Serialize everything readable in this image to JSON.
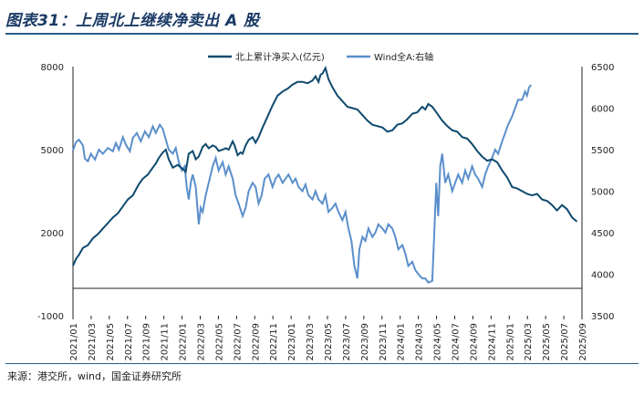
{
  "title": "图表31：上周北上继续净卖出 A 股",
  "source": "来源：港交所，wind，国金证券研究所",
  "chart_data": {
    "type": "line",
    "x_labels": [
      "2021/01",
      "2021/03",
      "2021/05",
      "2021/07",
      "2021/09",
      "2021/11",
      "2022/01",
      "2022/03",
      "2022/05",
      "2022/07",
      "2022/09",
      "2022/11",
      "2023/01",
      "2023/03",
      "2023/05",
      "2023/07",
      "2023/09",
      "2023/11",
      "2024/01",
      "2024/03",
      "2024/05",
      "2024/07",
      "2024/09",
      "2024/11",
      "2025/01",
      "2025/03",
      "2025/05",
      "2025/07",
      "2025/09"
    ],
    "y_left": {
      "min": -1000,
      "max": 8000,
      "ticks": [
        -1000,
        2000,
        5000,
        8000
      ]
    },
    "y_right": {
      "min": 3500,
      "max": 6500,
      "ticks": [
        3500,
        4000,
        4500,
        5000,
        5500,
        6000,
        6500
      ]
    },
    "series": [
      {
        "name": "北上累计净买入(亿元)",
        "axis": "left",
        "color": "#0f4a6e",
        "points": [
          [
            0,
            800
          ],
          [
            0.3,
            1050
          ],
          [
            0.6,
            1200
          ],
          [
            1,
            1450
          ],
          [
            1.5,
            1550
          ],
          [
            2,
            1800
          ],
          [
            2.5,
            1950
          ],
          [
            3,
            2150
          ],
          [
            3.5,
            2350
          ],
          [
            4,
            2550
          ],
          [
            4.5,
            2700
          ],
          [
            5,
            2950
          ],
          [
            5.5,
            3200
          ],
          [
            6,
            3350
          ],
          [
            6.3,
            3550
          ],
          [
            6.6,
            3750
          ],
          [
            7,
            3950
          ],
          [
            7.5,
            4100
          ],
          [
            8,
            4350
          ],
          [
            8.3,
            4500
          ],
          [
            8.6,
            4700
          ],
          [
            9,
            4900
          ],
          [
            9.3,
            5000
          ],
          [
            9.6,
            4650
          ],
          [
            10,
            4350
          ],
          [
            10.5,
            4450
          ],
          [
            11,
            4300
          ],
          [
            11.3,
            4200
          ],
          [
            11.6,
            4850
          ],
          [
            12,
            4950
          ],
          [
            12.3,
            4650
          ],
          [
            12.6,
            4750
          ],
          [
            13,
            5100
          ],
          [
            13.3,
            5200
          ],
          [
            13.6,
            5050
          ],
          [
            14,
            5150
          ],
          [
            14.3,
            5100
          ],
          [
            14.6,
            4950
          ],
          [
            15,
            5000
          ],
          [
            15.3,
            5050
          ],
          [
            15.6,
            5000
          ],
          [
            16,
            5300
          ],
          [
            16.2,
            5150
          ],
          [
            16.5,
            4800
          ],
          [
            16.8,
            4900
          ],
          [
            17,
            4850
          ],
          [
            17.3,
            5150
          ],
          [
            17.6,
            5350
          ],
          [
            18,
            5450
          ],
          [
            18.3,
            5250
          ],
          [
            18.6,
            5450
          ],
          [
            19,
            5800
          ],
          [
            19.5,
            6200
          ],
          [
            20,
            6600
          ],
          [
            20.5,
            6950
          ],
          [
            21,
            7100
          ],
          [
            21.5,
            7200
          ],
          [
            22,
            7350
          ],
          [
            22.5,
            7450
          ],
          [
            23,
            7450
          ],
          [
            23.5,
            7400
          ],
          [
            24,
            7500
          ],
          [
            24.3,
            7650
          ],
          [
            24.6,
            7450
          ],
          [
            24.8,
            7700
          ],
          [
            25,
            7750
          ],
          [
            25.3,
            7950
          ],
          [
            25.6,
            7550
          ],
          [
            26,
            7250
          ],
          [
            26.5,
            6950
          ],
          [
            27,
            6750
          ],
          [
            27.5,
            6550
          ],
          [
            28,
            6500
          ],
          [
            28.5,
            6450
          ],
          [
            29,
            6250
          ],
          [
            29.5,
            6050
          ],
          [
            30,
            5900
          ],
          [
            30.5,
            5850
          ],
          [
            31,
            5800
          ],
          [
            31.5,
            5650
          ],
          [
            32,
            5700
          ],
          [
            32.5,
            5900
          ],
          [
            33,
            5950
          ],
          [
            33.5,
            6100
          ],
          [
            34,
            6300
          ],
          [
            34.5,
            6350
          ],
          [
            35,
            6550
          ],
          [
            35.3,
            6450
          ],
          [
            35.6,
            6650
          ],
          [
            36,
            6550
          ],
          [
            36.5,
            6300
          ],
          [
            37,
            6050
          ],
          [
            37.5,
            5850
          ],
          [
            38,
            5700
          ],
          [
            38.5,
            5650
          ],
          [
            39,
            5450
          ],
          [
            39.5,
            5400
          ],
          [
            40,
            5200
          ],
          [
            40.5,
            4950
          ],
          [
            41,
            4750
          ],
          [
            41.5,
            4600
          ],
          [
            42,
            4650
          ],
          [
            42.5,
            4550
          ],
          [
            43,
            4250
          ],
          [
            43.5,
            4000
          ],
          [
            44,
            3650
          ],
          [
            44.5,
            3600
          ],
          [
            45,
            3500
          ],
          [
            45.5,
            3400
          ],
          [
            46,
            3350
          ],
          [
            46.5,
            3400
          ],
          [
            47,
            3200
          ],
          [
            47.5,
            3150
          ],
          [
            48,
            3000
          ],
          [
            48.5,
            2800
          ],
          [
            49,
            3000
          ],
          [
            49.5,
            2850
          ],
          [
            50,
            2550
          ],
          [
            50.5,
            2400
          ]
        ]
      },
      {
        "name": "Wind全A:右轴",
        "axis": "right",
        "color": "#5b8fcb",
        "points": [
          [
            0,
            5490
          ],
          [
            0.3,
            5590
          ],
          [
            0.6,
            5620
          ],
          [
            1,
            5550
          ],
          [
            1.2,
            5390
          ],
          [
            1.5,
            5360
          ],
          [
            1.8,
            5450
          ],
          [
            2.2,
            5380
          ],
          [
            2.6,
            5500
          ],
          [
            3,
            5450
          ],
          [
            3.5,
            5520
          ],
          [
            4,
            5480
          ],
          [
            4.3,
            5580
          ],
          [
            4.6,
            5500
          ],
          [
            5,
            5650
          ],
          [
            5.3,
            5560
          ],
          [
            5.7,
            5480
          ],
          [
            6,
            5640
          ],
          [
            6.4,
            5700
          ],
          [
            6.8,
            5600
          ],
          [
            7.2,
            5720
          ],
          [
            7.6,
            5650
          ],
          [
            8,
            5780
          ],
          [
            8.3,
            5700
          ],
          [
            8.7,
            5800
          ],
          [
            9,
            5750
          ],
          [
            9.3,
            5620
          ],
          [
            9.6,
            5500
          ],
          [
            10,
            5450
          ],
          [
            10.3,
            5520
          ],
          [
            10.6,
            5350
          ],
          [
            10.9,
            5250
          ],
          [
            11.2,
            5300
          ],
          [
            11.4,
            5050
          ],
          [
            11.6,
            4900
          ],
          [
            11.8,
            5100
          ],
          [
            12,
            5200
          ],
          [
            12.3,
            5050
          ],
          [
            12.6,
            4600
          ],
          [
            12.8,
            4800
          ],
          [
            13,
            4750
          ],
          [
            13.3,
            4950
          ],
          [
            13.6,
            5100
          ],
          [
            14,
            5300
          ],
          [
            14.3,
            5400
          ],
          [
            14.6,
            5250
          ],
          [
            15,
            5350
          ],
          [
            15.3,
            5200
          ],
          [
            15.6,
            5300
          ],
          [
            16,
            5150
          ],
          [
            16.3,
            4950
          ],
          [
            16.6,
            4850
          ],
          [
            17,
            4700
          ],
          [
            17.3,
            4800
          ],
          [
            17.6,
            5000
          ],
          [
            18,
            5100
          ],
          [
            18.3,
            5050
          ],
          [
            18.6,
            4850
          ],
          [
            18.9,
            4950
          ],
          [
            19.2,
            5150
          ],
          [
            19.6,
            5200
          ],
          [
            20,
            5050
          ],
          [
            20.3,
            5150
          ],
          [
            20.6,
            5200
          ],
          [
            21,
            5100
          ],
          [
            21.3,
            5150
          ],
          [
            21.6,
            5200
          ],
          [
            22,
            5100
          ],
          [
            22.3,
            5150
          ],
          [
            22.6,
            5050
          ],
          [
            23,
            5000
          ],
          [
            23.3,
            5080
          ],
          [
            23.6,
            4950
          ],
          [
            24,
            4900
          ],
          [
            24.3,
            5000
          ],
          [
            24.6,
            4900
          ],
          [
            25,
            4850
          ],
          [
            25.3,
            4950
          ],
          [
            25.6,
            4750
          ],
          [
            26,
            4800
          ],
          [
            26.3,
            4850
          ],
          [
            26.6,
            4750
          ],
          [
            27,
            4650
          ],
          [
            27.3,
            4750
          ],
          [
            27.6,
            4550
          ],
          [
            27.9,
            4400
          ],
          [
            28.2,
            4100
          ],
          [
            28.5,
            3950
          ],
          [
            28.7,
            4300
          ],
          [
            29,
            4450
          ],
          [
            29.3,
            4400
          ],
          [
            29.6,
            4550
          ],
          [
            30,
            4450
          ],
          [
            30.3,
            4500
          ],
          [
            30.6,
            4600
          ],
          [
            31,
            4550
          ],
          [
            31.3,
            4500
          ],
          [
            31.6,
            4600
          ],
          [
            32,
            4550
          ],
          [
            32.3,
            4450
          ],
          [
            32.6,
            4300
          ],
          [
            33,
            4350
          ],
          [
            33.3,
            4250
          ],
          [
            33.6,
            4100
          ],
          [
            34,
            4150
          ],
          [
            34.3,
            4050
          ],
          [
            34.6,
            4000
          ],
          [
            35,
            3950
          ],
          [
            35.3,
            3950
          ],
          [
            35.6,
            3900
          ],
          [
            36,
            3920
          ],
          [
            36.2,
            4500
          ],
          [
            36.4,
            5100
          ],
          [
            36.6,
            4700
          ],
          [
            36.8,
            5300
          ],
          [
            37,
            5450
          ],
          [
            37.3,
            5100
          ],
          [
            37.6,
            5200
          ],
          [
            38,
            5000
          ],
          [
            38.3,
            5100
          ],
          [
            38.6,
            5200
          ],
          [
            39,
            5100
          ],
          [
            39.3,
            5250
          ],
          [
            39.6,
            5150
          ],
          [
            40,
            5300
          ],
          [
            40.3,
            5200
          ],
          [
            40.6,
            5150
          ],
          [
            41,
            5050
          ],
          [
            41.3,
            5200
          ],
          [
            41.6,
            5300
          ],
          [
            42,
            5400
          ],
          [
            42.3,
            5500
          ],
          [
            42.6,
            5450
          ],
          [
            43,
            5600
          ],
          [
            43.3,
            5700
          ],
          [
            43.6,
            5800
          ],
          [
            44,
            5900
          ],
          [
            44.3,
            6000
          ],
          [
            44.6,
            6100
          ],
          [
            45,
            6100
          ],
          [
            45.3,
            6200
          ],
          [
            45.5,
            6150
          ],
          [
            45.7,
            6250
          ],
          [
            45.9,
            6280
          ]
        ]
      }
    ],
    "total_points": 52,
    "legend": [
      "北上累计净买入(亿元)",
      "Wind全A:右轴"
    ],
    "legend_position": "top"
  }
}
